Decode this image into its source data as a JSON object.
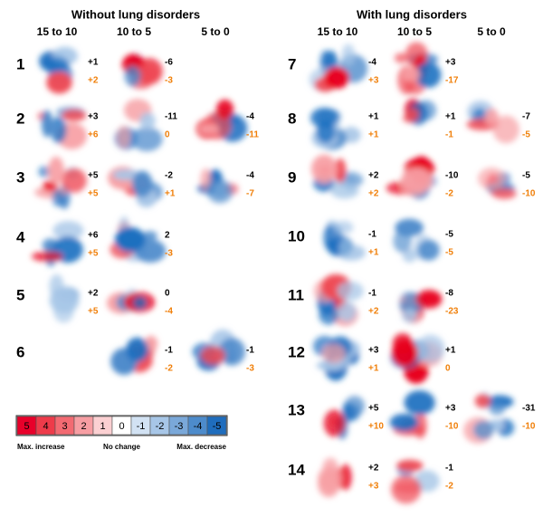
{
  "panels": [
    {
      "title": "Without lung disorders",
      "columns": [
        "15 to 10",
        "10 to 5",
        "5 to 0"
      ],
      "rows": [
        {
          "label": "1",
          "cells": [
            {
              "top": "+1",
              "bottom": "+2"
            },
            {
              "top": "-6",
              "bottom": "-3"
            },
            null
          ]
        },
        {
          "label": "2",
          "cells": [
            {
              "top": "+3",
              "bottom": "+6"
            },
            {
              "top": "-11",
              "bottom": "0"
            },
            {
              "top": "-4",
              "bottom": "-11"
            }
          ]
        },
        {
          "label": "3",
          "cells": [
            {
              "top": "+5",
              "bottom": "+5"
            },
            {
              "top": "-2",
              "bottom": "+1"
            },
            {
              "top": "-4",
              "bottom": "-7"
            }
          ]
        },
        {
          "label": "4",
          "cells": [
            {
              "top": "+6",
              "bottom": "+5"
            },
            {
              "top": "2",
              "bottom": "-3"
            },
            null
          ]
        },
        {
          "label": "5",
          "cells": [
            {
              "top": "+2",
              "bottom": "+5"
            },
            {
              "top": "0",
              "bottom": "-4"
            },
            null
          ]
        },
        {
          "label": "6",
          "cells": [
            null,
            {
              "top": "-1",
              "bottom": "-2"
            },
            {
              "top": "-1",
              "bottom": "-3"
            }
          ]
        }
      ]
    },
    {
      "title": "With lung disorders",
      "columns": [
        "15 to 10",
        "10 to 5",
        "5 to 0"
      ],
      "rows": [
        {
          "label": "7",
          "cells": [
            {
              "top": "-4",
              "bottom": "+3"
            },
            {
              "top": "+3",
              "bottom": "-17"
            },
            null
          ]
        },
        {
          "label": "8",
          "cells": [
            {
              "top": "+1",
              "bottom": "+1"
            },
            {
              "top": "+1",
              "bottom": "-1"
            },
            {
              "top": "-7",
              "bottom": "-5"
            }
          ]
        },
        {
          "label": "9",
          "cells": [
            {
              "top": "+2",
              "bottom": "+2"
            },
            {
              "top": "-10",
              "bottom": "-2"
            },
            {
              "top": "-5",
              "bottom": "-10"
            }
          ]
        },
        {
          "label": "10",
          "cells": [
            {
              "top": "-1",
              "bottom": "+1"
            },
            {
              "top": "-5",
              "bottom": "-5"
            },
            null
          ]
        },
        {
          "label": "11",
          "cells": [
            {
              "top": "-1",
              "bottom": "+2"
            },
            {
              "top": "-8",
              "bottom": "-23"
            },
            null
          ]
        },
        {
          "label": "12",
          "cells": [
            {
              "top": "+3",
              "bottom": "+1"
            },
            {
              "top": "+1",
              "bottom": "0"
            },
            null
          ]
        },
        {
          "label": "13",
          "cells": [
            {
              "top": "+5",
              "bottom": "+10"
            },
            {
              "top": "+3",
              "bottom": "-10"
            },
            {
              "top": "-31",
              "bottom": "-10"
            }
          ]
        },
        {
          "label": "14",
          "cells": [
            {
              "top": "+2",
              "bottom": "+3"
            },
            {
              "top": "-1",
              "bottom": "-2"
            },
            null
          ]
        }
      ]
    }
  ],
  "legend": {
    "cells": [
      "5",
      "4",
      "3",
      "2",
      "1",
      "0",
      "-1",
      "-2",
      "-3",
      "-4",
      "-5"
    ],
    "labels": [
      "Max. increase",
      "No change",
      "Max. decrease"
    ]
  }
}
